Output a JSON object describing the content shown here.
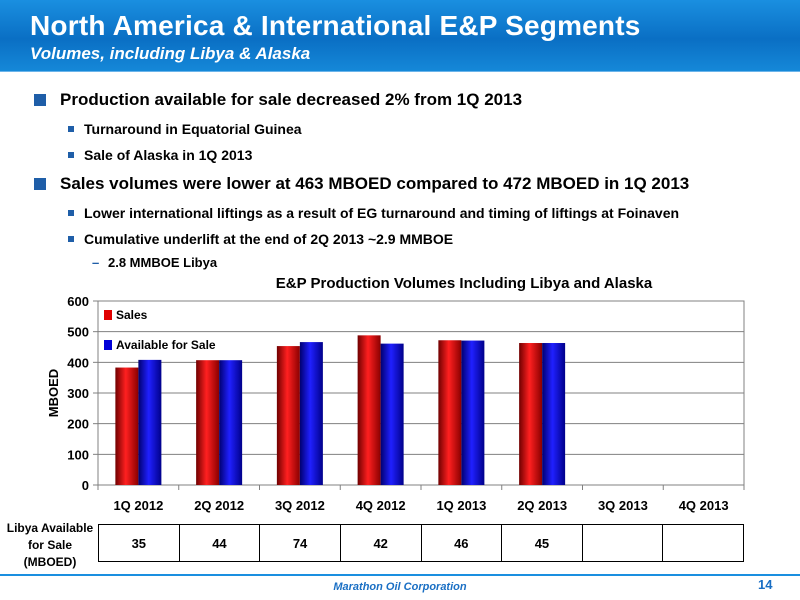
{
  "header": {
    "title": "North America & International E&P Segments",
    "subtitle": "Volumes, including Libya & Alaska"
  },
  "bullets": [
    {
      "level": 1,
      "text": "Production available for sale decreased 2% from 1Q 2013"
    },
    {
      "level": 2,
      "text": "Turnaround in Equatorial Guinea"
    },
    {
      "level": 2,
      "text": "Sale of Alaska in 1Q 2013"
    },
    {
      "level": 1,
      "text": "Sales volumes were lower at 463 MBOED compared to 472 MBOED in 1Q 2013"
    },
    {
      "level": 2,
      "text": "Lower international liftings as a result of EG turnaround and timing of liftings at Foinaven"
    },
    {
      "level": 2,
      "text": "Cumulative underlift at the end of 2Q 2013 ~2.9 MMBOE"
    },
    {
      "level": 3,
      "text": "2.8 MMBOE Libya"
    }
  ],
  "chart_data": {
    "type": "bar",
    "title": "E&P Production Volumes Including Libya and Alaska",
    "ylabel": "MBOED",
    "xlabel": "",
    "ylim": [
      0,
      600
    ],
    "yticks": [
      0,
      100,
      200,
      300,
      400,
      500,
      600
    ],
    "categories": [
      "1Q 2012",
      "2Q 2012",
      "3Q 2012",
      "4Q 2012",
      "1Q 2013",
      "2Q 2013",
      "3Q 2013",
      "4Q 2013"
    ],
    "series": [
      {
        "name": "Sales",
        "color": "#e00000",
        "values": [
          383,
          407,
          453,
          488,
          472,
          463,
          null,
          null
        ]
      },
      {
        "name": "Available for Sale",
        "color": "#0000d8",
        "values": [
          408,
          407,
          466,
          461,
          471,
          463,
          null,
          null
        ]
      }
    ],
    "legend_position": "top-left",
    "grid": true
  },
  "libya": {
    "label": "Libya Available for Sale (MBOED)",
    "values": [
      "35",
      "44",
      "74",
      "42",
      "46",
      "45",
      "",
      ""
    ]
  },
  "footer": {
    "company": "Marathon Oil Corporation",
    "page": "14"
  }
}
